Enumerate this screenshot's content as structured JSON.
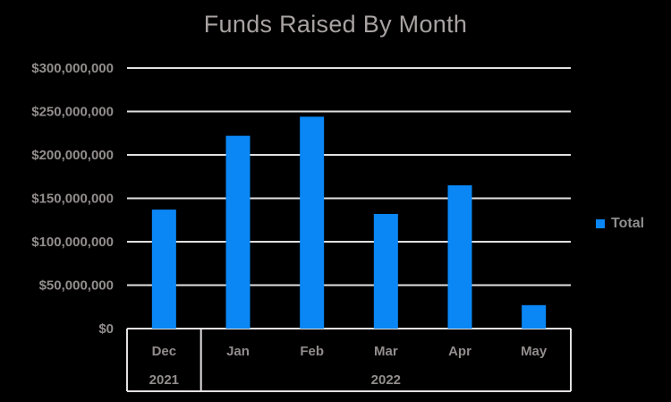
{
  "colors": {
    "background": "#000000",
    "bar": "#0A87F5",
    "gridline": "#E3E0E0",
    "axis_text": "#938D8D",
    "title_text": "#A8A2A2",
    "legend_text": "#8E8E8E"
  },
  "chart_data": {
    "type": "bar",
    "title": "Funds Raised By Month",
    "categories": [
      "Dec",
      "Jan",
      "Feb",
      "Mar",
      "Apr",
      "May"
    ],
    "year_groups": [
      {
        "label": "2021",
        "start": 0,
        "count": 1
      },
      {
        "label": "2022",
        "start": 1,
        "count": 5
      }
    ],
    "series": [
      {
        "name": "Total",
        "values": [
          137000000,
          222000000,
          244000000,
          132000000,
          165000000,
          27000000
        ]
      }
    ],
    "xlabel": "",
    "ylabel": "",
    "ylim": [
      0,
      300000000
    ],
    "y_ticks": [
      {
        "value": 0,
        "label": "$0"
      },
      {
        "value": 50000000,
        "label": "$50,000,000"
      },
      {
        "value": 100000000,
        "label": "$100,000,000"
      },
      {
        "value": 150000000,
        "label": "$150,000,000"
      },
      {
        "value": 200000000,
        "label": "$200,000,000"
      },
      {
        "value": 250000000,
        "label": "$250,000,000"
      },
      {
        "value": 300000000,
        "label": "$300,000,000"
      }
    ],
    "grid": true,
    "legend_position": "right"
  }
}
